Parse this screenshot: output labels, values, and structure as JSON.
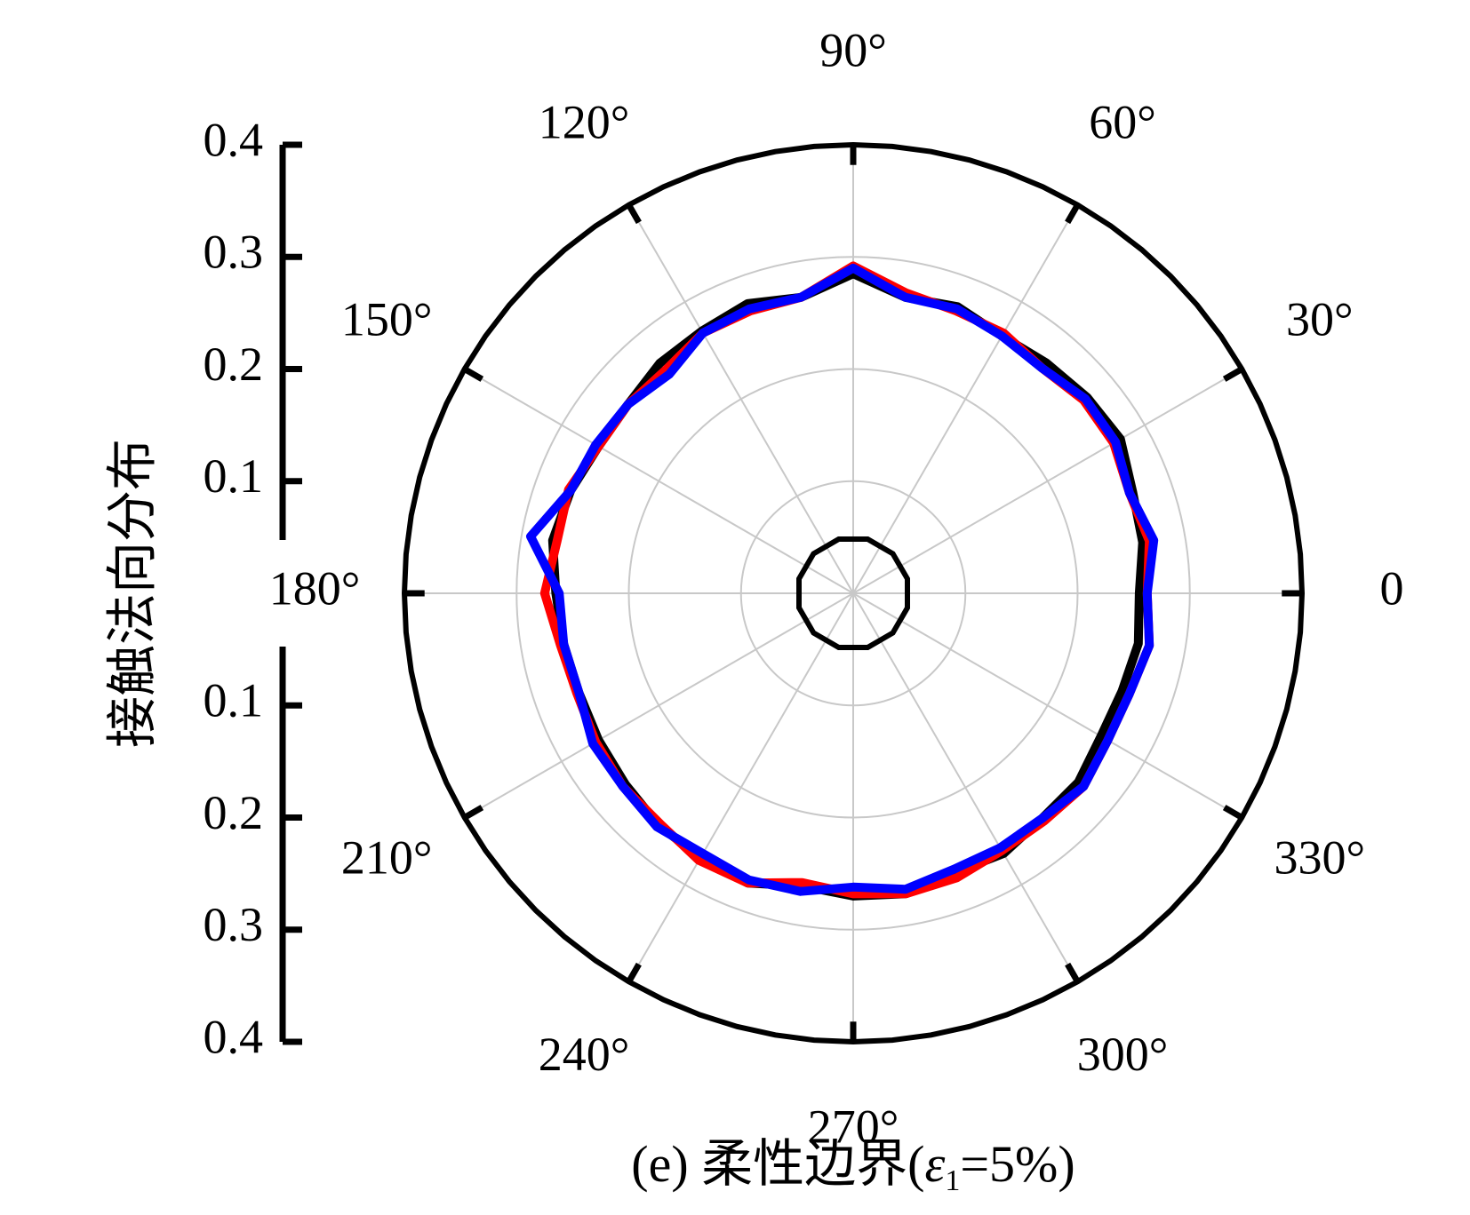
{
  "chart_data": {
    "type": "polar-line",
    "caption": {
      "prefix": "(e) 柔性边界(",
      "symbol": "ε",
      "subscript": "1",
      "suffix": "=5%)"
    },
    "ylabel": "接触法向分布",
    "rlim": [
      0,
      0.4
    ],
    "r_ticks_upper": [
      "0.4",
      "0.3",
      "0.2",
      "0.1"
    ],
    "r_ticks_lower": [
      "0.1",
      "0.2",
      "0.3",
      "0.4"
    ],
    "angle_labels": [
      {
        "deg": 0,
        "text": "0"
      },
      {
        "deg": 30,
        "text": "30°"
      },
      {
        "deg": 60,
        "text": "60°"
      },
      {
        "deg": 90,
        "text": "90°"
      },
      {
        "deg": 120,
        "text": "120°"
      },
      {
        "deg": 150,
        "text": "150°"
      },
      {
        "deg": 180,
        "text": "180°"
      },
      {
        "deg": 210,
        "text": "210°"
      },
      {
        "deg": 240,
        "text": "240°"
      },
      {
        "deg": 270,
        "text": "270°"
      },
      {
        "deg": 300,
        "text": "300°"
      },
      {
        "deg": 330,
        "text": "330°"
      }
    ],
    "grid": true,
    "angles_deg": [
      0,
      10,
      20,
      30,
      40,
      50,
      60,
      70,
      80,
      90,
      100,
      110,
      120,
      130,
      140,
      150,
      160,
      170,
      180,
      190,
      200,
      210,
      220,
      230,
      240,
      250,
      260,
      270,
      280,
      290,
      300,
      310,
      320,
      330,
      340,
      350
    ],
    "series": [
      {
        "color": "#000000",
        "values": [
          0.255,
          0.262,
          0.265,
          0.275,
          0.272,
          0.268,
          0.265,
          0.272,
          0.268,
          0.285,
          0.268,
          0.275,
          0.27,
          0.268,
          0.262,
          0.262,
          0.268,
          0.272,
          0.265,
          0.262,
          0.26,
          0.262,
          0.265,
          0.27,
          0.272,
          0.275,
          0.265,
          0.27,
          0.272,
          0.265,
          0.268,
          0.262,
          0.262,
          0.255,
          0.255,
          0.258
        ]
      },
      {
        "color": "#ff0000",
        "values": [
          0.262,
          0.268,
          0.262,
          0.268,
          0.268,
          0.262,
          0.268,
          0.268,
          0.272,
          0.292,
          0.268,
          0.268,
          0.268,
          0.26,
          0.262,
          0.262,
          0.27,
          0.268,
          0.275,
          0.265,
          0.262,
          0.265,
          0.268,
          0.268,
          0.275,
          0.275,
          0.262,
          0.268,
          0.272,
          0.27,
          0.265,
          0.265,
          0.268,
          0.262,
          0.262,
          0.268
        ]
      },
      {
        "color": "#0000ff",
        "values": [
          0.262,
          0.272,
          0.262,
          0.27,
          0.27,
          0.262,
          0.265,
          0.27,
          0.268,
          0.29,
          0.268,
          0.27,
          0.268,
          0.255,
          0.262,
          0.265,
          0.268,
          0.292,
          0.262,
          0.262,
          0.26,
          0.268,
          0.268,
          0.272,
          0.268,
          0.272,
          0.27,
          0.262,
          0.268,
          0.262,
          0.262,
          0.262,
          0.268,
          0.262,
          0.262,
          0.268
        ]
      }
    ],
    "inner_ring_r": 0.05
  }
}
